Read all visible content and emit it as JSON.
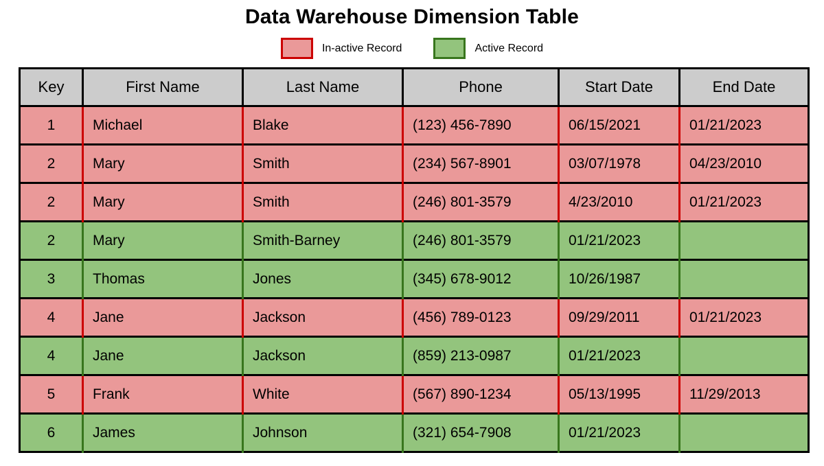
{
  "chart_data": {
    "type": "table",
    "title": "Data Warehouse Dimension Table",
    "legend": [
      {
        "label": "In-active Record",
        "status": "inactive",
        "fill": "#ea9999",
        "border": "#cc0000"
      },
      {
        "label": "Active Record",
        "status": "active",
        "fill": "#93c47d",
        "border": "#38761d"
      }
    ],
    "columns": [
      "Key",
      "First Name",
      "Last Name",
      "Phone",
      "Start Date",
      "End Date"
    ],
    "rows": [
      {
        "status": "inactive",
        "cells": [
          "1",
          "Michael",
          "Blake",
          "(123) 456-7890",
          "06/15/2021",
          "01/21/2023"
        ]
      },
      {
        "status": "inactive",
        "cells": [
          "2",
          "Mary",
          "Smith",
          "(234) 567-8901",
          "03/07/1978",
          "04/23/2010"
        ]
      },
      {
        "status": "inactive",
        "cells": [
          "2",
          "Mary",
          "Smith",
          "(246) 801-3579",
          "4/23/2010",
          "01/21/2023"
        ]
      },
      {
        "status": "active",
        "cells": [
          "2",
          "Mary",
          "Smith-Barney",
          "(246) 801-3579",
          "01/21/2023",
          ""
        ]
      },
      {
        "status": "active",
        "cells": [
          "3",
          "Thomas",
          "Jones",
          "(345) 678-9012",
          "10/26/1987",
          ""
        ]
      },
      {
        "status": "inactive",
        "cells": [
          "4",
          "Jane",
          "Jackson",
          "(456) 789-0123",
          "09/29/2011",
          "01/21/2023"
        ]
      },
      {
        "status": "active",
        "cells": [
          "4",
          "Jane",
          "Jackson",
          "(859) 213-0987",
          "01/21/2023",
          ""
        ]
      },
      {
        "status": "inactive",
        "cells": [
          "5",
          "Frank",
          "White",
          "(567) 890-1234",
          "05/13/1995",
          "11/29/2013"
        ]
      },
      {
        "status": "active",
        "cells": [
          "6",
          "James",
          "Johnson",
          "(321) 654-7908",
          "01/21/2023",
          ""
        ]
      }
    ],
    "colors": {
      "inactive_fill": "#ea9999",
      "inactive_border": "#cc0000",
      "active_fill": "#93c47d",
      "active_border": "#38761d",
      "header_fill": "#cccccc",
      "grid": "#000000",
      "background": "#ffffff"
    },
    "layout_hints": {
      "legend_position": "top",
      "grid": true
    }
  }
}
